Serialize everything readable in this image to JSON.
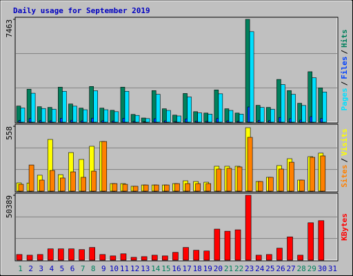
{
  "chart_data": [
    {
      "type": "bar",
      "title": "Daily usage for September 2019",
      "title_color": "#0000c0",
      "ylim": [
        0,
        7463
      ],
      "yticks": [
        7463
      ],
      "legend_separator": "/",
      "series": [
        {
          "name": "Hits",
          "color": "#00805c",
          "values": [
            1170,
            2390,
            1120,
            1070,
            2540,
            1320,
            1020,
            2590,
            1020,
            860,
            2540,
            560,
            300,
            2290,
            970,
            510,
            2080,
            760,
            660,
            2340,
            970,
            660,
            7463,
            1220,
            1070,
            3100,
            2290,
            1370,
            3660,
            2490,
            0
          ]
        },
        {
          "name": "Files",
          "color": "#0040ff",
          "values": [
            120,
            260,
            110,
            100,
            280,
            140,
            100,
            290,
            110,
            90,
            280,
            60,
            30,
            250,
            100,
            50,
            230,
            80,
            70,
            260,
            100,
            70,
            1100,
            130,
            110,
            340,
            250,
            150,
            400,
            270,
            0
          ]
        },
        {
          "name": "Pages",
          "color": "#00e0ff",
          "values": [
            1030,
            2100,
            990,
            940,
            2240,
            1160,
            900,
            2280,
            900,
            760,
            2240,
            490,
            260,
            2020,
            850,
            450,
            1830,
            670,
            580,
            2060,
            850,
            580,
            6570,
            1070,
            940,
            2730,
            2020,
            1210,
            3220,
            2190,
            0
          ]
        }
      ]
    },
    {
      "type": "bar",
      "ylim": [
        0,
        558
      ],
      "yticks": [
        558
      ],
      "legend_separator": "/",
      "series": [
        {
          "name": "Visits",
          "color": "#ffff00",
          "values": [
            71,
            70,
            137,
            445,
            142,
            332,
            273,
            386,
            427,
            65,
            65,
            42,
            53,
            53,
            53,
            65,
            89,
            83,
            77,
            214,
            214,
            214,
            546,
            83,
            119,
            220,
            279,
            95,
            297,
            327,
            0
          ]
        },
        {
          "name": "Sites",
          "color": "#ff8000",
          "values": [
            59,
            225,
            95,
            178,
            113,
            166,
            119,
            172,
            427,
            65,
            59,
            42,
            53,
            53,
            53,
            65,
            65,
            65,
            65,
            190,
            196,
            208,
            463,
            83,
            119,
            190,
            249,
            95,
            291,
            303,
            0
          ]
        }
      ]
    },
    {
      "type": "bar",
      "ylim": [
        0,
        50389
      ],
      "yticks": [
        50389
      ],
      "categories": [
        "1",
        "2",
        "3",
        "4",
        "5",
        "6",
        "7",
        "8",
        "9",
        "10",
        "11",
        "12",
        "13",
        "14",
        "15",
        "16",
        "17",
        "18",
        "19",
        "20",
        "21",
        "22",
        "23",
        "24",
        "25",
        "26",
        "27",
        "28",
        "29",
        "30",
        "31"
      ],
      "category_colors": [
        "#00805c",
        "#0000c0",
        "#0000c0",
        "#0000c0",
        "#0000c0",
        "#0000c0",
        "#00805c",
        "#00805c",
        "#0000c0",
        "#0000c0",
        "#0000c0",
        "#0000c0",
        "#0000c0",
        "#00805c",
        "#00805c",
        "#0000c0",
        "#0000c0",
        "#0000c0",
        "#0000c0",
        "#0000c0",
        "#00805c",
        "#00805c",
        "#0000c0",
        "#0000c0",
        "#0000c0",
        "#0000c0",
        "#0000c0",
        "#00805c",
        "#00805c",
        "#0000c0",
        "#0000c0"
      ],
      "series": [
        {
          "name": "KBytes",
          "color": "#ff0000",
          "values": [
            4380,
            3840,
            4380,
            8770,
            8770,
            8770,
            8220,
            9860,
            4380,
            3290,
            4930,
            2190,
            2740,
            3840,
            3290,
            6030,
            9860,
            7670,
            7120,
            24110,
            22470,
            23560,
            50389,
            3840,
            4380,
            9320,
            18080,
            3840,
            29040,
            30680,
            0
          ]
        }
      ]
    }
  ]
}
